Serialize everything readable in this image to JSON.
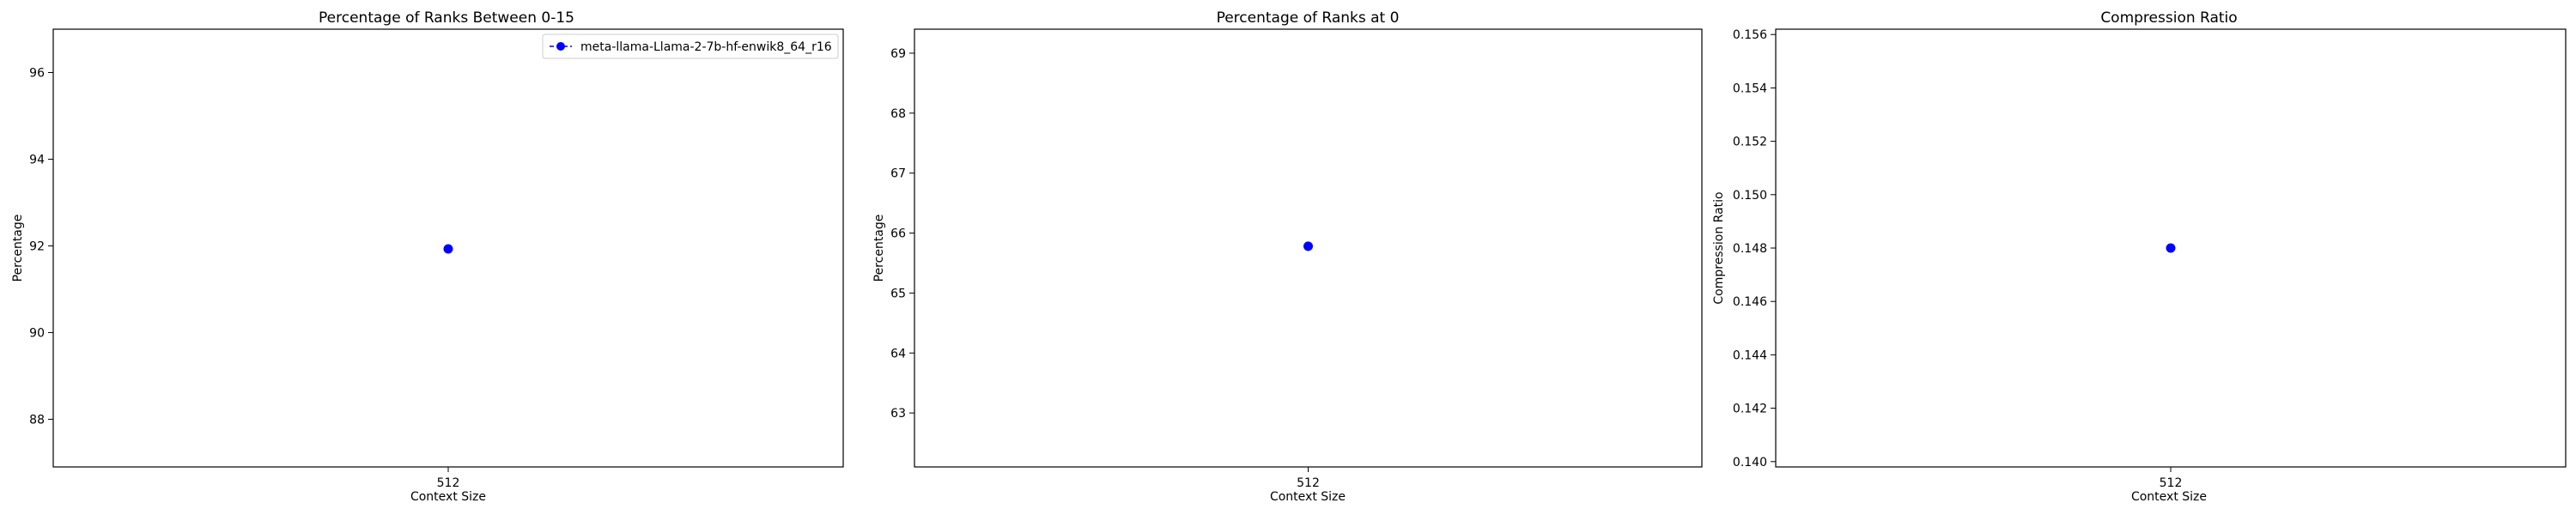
{
  "chart_data": [
    {
      "type": "line",
      "title": "Percentage of Ranks Between 0-15",
      "xlabel": "Context Size",
      "ylabel": "Percentage",
      "x": [
        512
      ],
      "series": [
        {
          "name": "meta-llama-Llama-2-7b-hf-enwik8_64_r16",
          "values": [
            91.93
          ],
          "color": "#0000ff"
        }
      ],
      "ylim": [
        86.9,
        97.0
      ],
      "yticks": [
        88,
        90,
        92,
        94,
        96
      ],
      "xticks": [
        "512"
      ],
      "legend": "top-right",
      "grid": false
    },
    {
      "type": "line",
      "title": "Percentage of Ranks at 0",
      "xlabel": "Context Size",
      "ylabel": "Percentage",
      "x": [
        512
      ],
      "series": [
        {
          "values": [
            65.78
          ],
          "color": "#0000ff"
        }
      ],
      "ylim": [
        62.1,
        69.4
      ],
      "yticks": [
        63,
        64,
        65,
        66,
        67,
        68,
        69
      ],
      "xticks": [
        "512"
      ],
      "grid": false
    },
    {
      "type": "line",
      "title": "Compression Ratio",
      "xlabel": "Context Size",
      "ylabel": "Compression Ratio",
      "x": [
        512
      ],
      "series": [
        {
          "values": [
            0.148
          ],
          "color": "#0000ff"
        }
      ],
      "ylim": [
        0.1398,
        0.1562
      ],
      "yticks": [
        0.14,
        0.142,
        0.144,
        0.146,
        0.148,
        0.15,
        0.152,
        0.154,
        0.156
      ],
      "ytick_labels": [
        "0.140",
        "0.142",
        "0.144",
        "0.146",
        "0.148",
        "0.150",
        "0.152",
        "0.154",
        "0.156"
      ],
      "xticks": [
        "512"
      ],
      "grid": false
    }
  ]
}
